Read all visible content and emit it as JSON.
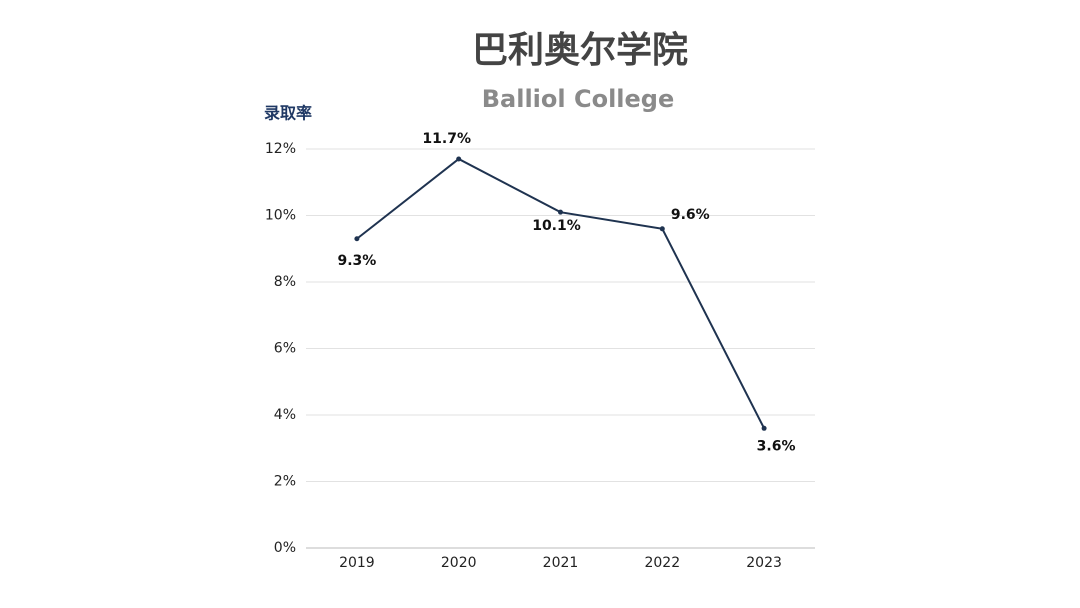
{
  "chart_data": {
    "type": "line",
    "title": "巴利奥尔学院",
    "subtitle": "Balliol College",
    "y_label": "录取率",
    "categories": [
      "2019",
      "2020",
      "2021",
      "2022",
      "2023"
    ],
    "series": [
      {
        "name": "录取率",
        "color": "#1f3350",
        "values": [
          9.3,
          11.7,
          10.1,
          9.6,
          3.6
        ],
        "value_labels": [
          "9.3%",
          "11.7%",
          "10.1%",
          "9.6%",
          "3.6%"
        ]
      }
    ],
    "ylim": [
      0,
      12
    ],
    "yticks": [
      {
        "value": 0,
        "label": "0%"
      },
      {
        "value": 2,
        "label": "2%"
      },
      {
        "value": 4,
        "label": "4%"
      },
      {
        "value": 6,
        "label": "6%"
      },
      {
        "value": 8,
        "label": "8%"
      },
      {
        "value": 10,
        "label": "10%"
      },
      {
        "value": 12,
        "label": "12%"
      }
    ],
    "grid": true
  }
}
